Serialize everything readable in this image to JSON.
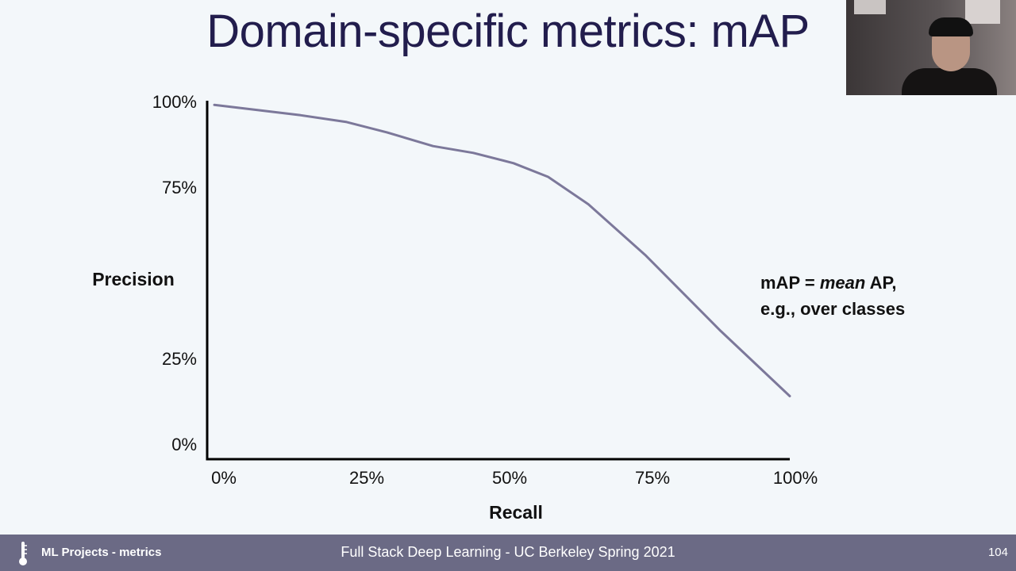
{
  "slide": {
    "title": "Domain-specific metrics: mAP",
    "annotation_line1_prefix": "mAP = ",
    "annotation_line1_italic": "mean",
    "annotation_line1_suffix": " AP,",
    "annotation_line2": "e.g., over classes"
  },
  "chart_data": {
    "type": "line",
    "xlabel": "Recall",
    "ylabel": "Precision",
    "x_ticks": [
      "0%",
      "25%",
      "50%",
      "75%",
      "100%"
    ],
    "y_ticks": [
      {
        "value": 100,
        "label": "100%"
      },
      {
        "value": 75,
        "label": "75%"
      },
      {
        "value": 25,
        "label": "25%"
      },
      {
        "value": 0,
        "label": "0%"
      }
    ],
    "xlim": [
      0,
      100
    ],
    "ylim": [
      0,
      100
    ],
    "grid": false,
    "series": [
      {
        "color": "#7c789a",
        "points": [
          {
            "x": 0,
            "y": 99
          },
          {
            "x": 15,
            "y": 96
          },
          {
            "x": 23,
            "y": 94
          },
          {
            "x": 30,
            "y": 91
          },
          {
            "x": 38,
            "y": 87
          },
          {
            "x": 45,
            "y": 85
          },
          {
            "x": 52,
            "y": 82
          },
          {
            "x": 58,
            "y": 78
          },
          {
            "x": 65,
            "y": 70
          },
          {
            "x": 75,
            "y": 55
          },
          {
            "x": 88,
            "y": 33
          },
          {
            "x": 100,
            "y": 14
          }
        ]
      }
    ]
  },
  "footer": {
    "left": "ML Projects - metrics",
    "center": "Full Stack Deep Learning - UC Berkeley Spring 2021",
    "page_number": "104"
  }
}
